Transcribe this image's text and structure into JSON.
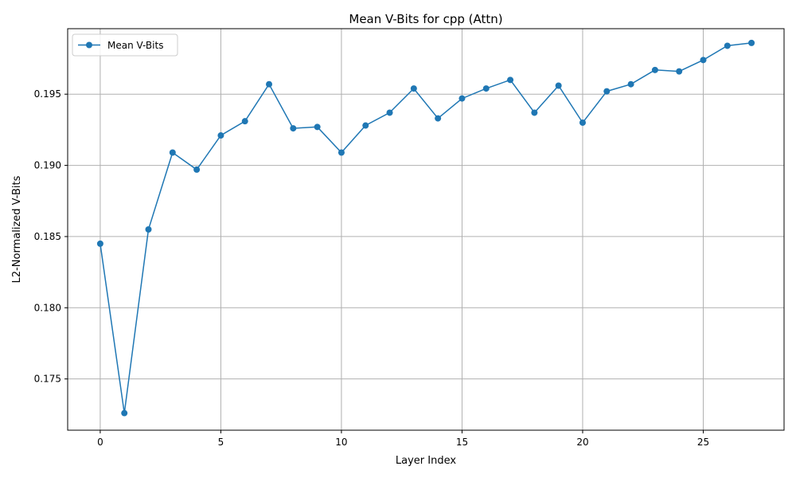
{
  "colors": {
    "series": "#1f77b4",
    "grid": "#b0b0b0",
    "axis": "#000000"
  },
  "chart_data": {
    "type": "line",
    "title": "Mean V-Bits for cpp (Attn)",
    "xlabel": "Layer Index",
    "ylabel": "L2-Normalized V-Bits",
    "xlim": [
      -1.35,
      28.35
    ],
    "ylim": [
      0.1714,
      0.1996
    ],
    "xticks": [
      0,
      5,
      10,
      15,
      20,
      25
    ],
    "xtick_labels": [
      "0",
      "5",
      "10",
      "15",
      "20",
      "25"
    ],
    "yticks": [
      0.175,
      0.18,
      0.185,
      0.19,
      0.195
    ],
    "ytick_labels": [
      "0.175",
      "0.180",
      "0.185",
      "0.190",
      "0.195"
    ],
    "grid": true,
    "legend_position": "top-left",
    "series": [
      {
        "name": "Mean V-Bits",
        "marker": "circle",
        "x": [
          0,
          1,
          2,
          3,
          4,
          5,
          6,
          7,
          8,
          9,
          10,
          11,
          12,
          13,
          14,
          15,
          16,
          17,
          18,
          19,
          20,
          21,
          22,
          23,
          24,
          25,
          26,
          27
        ],
        "values": [
          0.1845,
          0.1726,
          0.1855,
          0.1909,
          0.1897,
          0.1921,
          0.1931,
          0.1957,
          0.1926,
          0.1927,
          0.1909,
          0.1928,
          0.1937,
          0.1954,
          0.1933,
          0.1947,
          0.1954,
          0.196,
          0.1937,
          0.1956,
          0.193,
          0.1952,
          0.1957,
          0.1967,
          0.1966,
          0.1974,
          0.1984,
          0.1986
        ]
      }
    ]
  }
}
